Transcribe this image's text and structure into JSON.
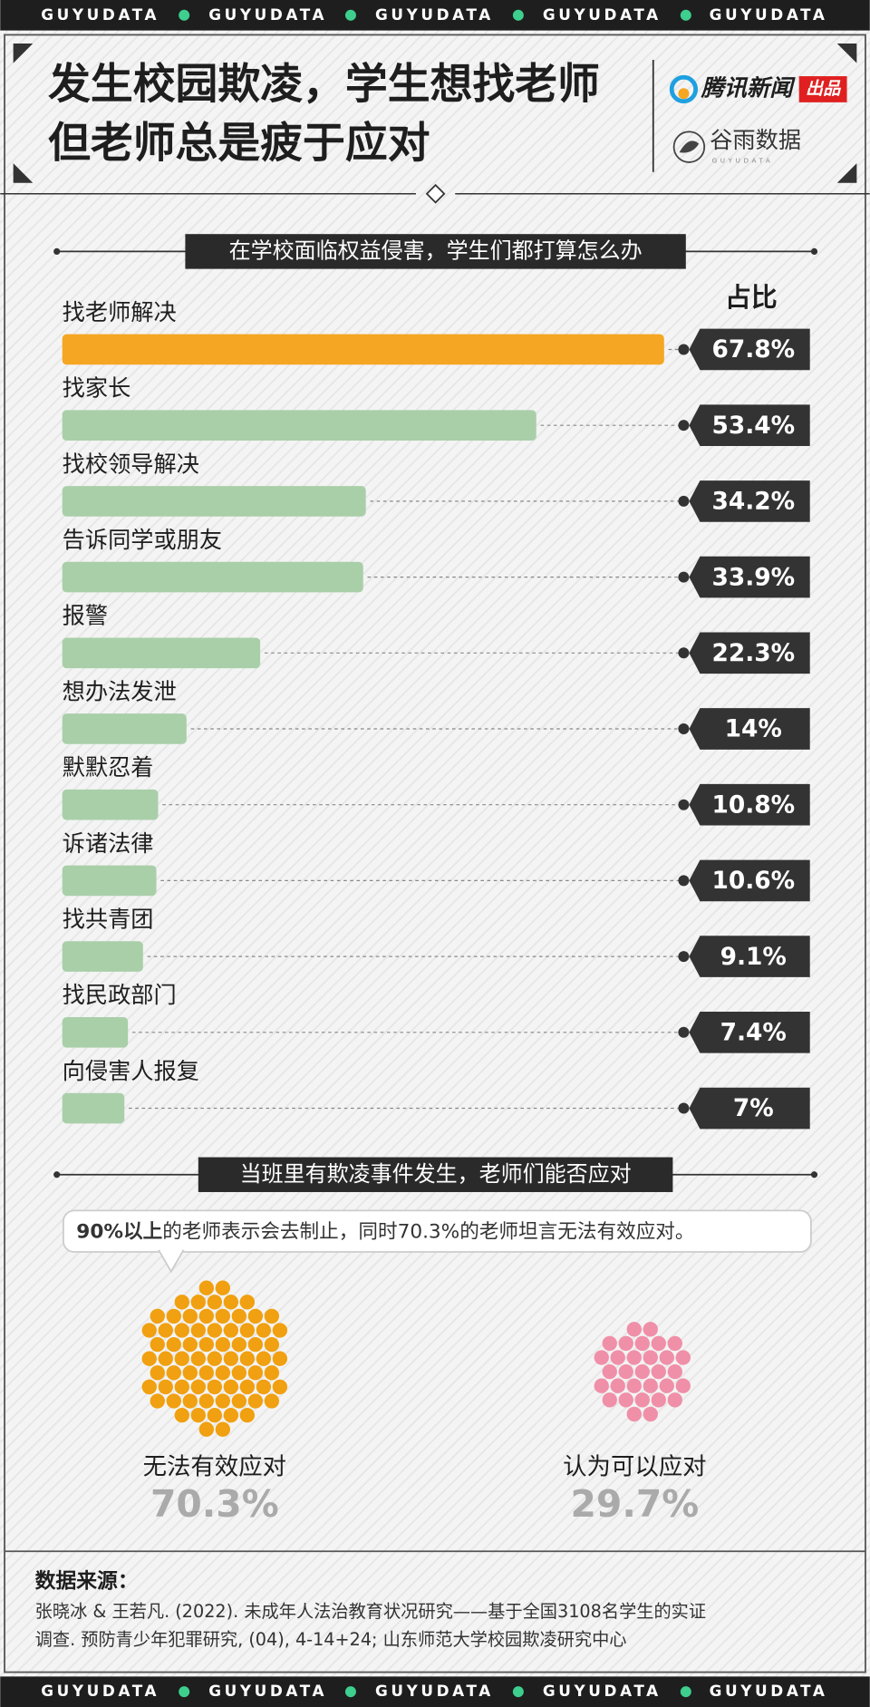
{
  "banner": "GUYUDATA",
  "header": {
    "title_lines": [
      "发生校园欺凌，学生想找老师",
      "但老师总是疲于应对"
    ],
    "publisher": "腾讯新闻",
    "publisher_tag": "出品",
    "brand": "谷雨数据",
    "brand_sub": "GUYUDATA"
  },
  "chart_data": [
    {
      "type": "bar",
      "orientation": "horizontal",
      "title": "在学校面临权益侵害，学生们都打算怎么办",
      "value_header": "占比",
      "categories": [
        "找老师解决",
        "找家长",
        "找校领导解决",
        "告诉同学或朋友",
        "报警",
        "想办法发泄",
        "默默忍着",
        "诉诸法律",
        "找共青团",
        "找民政部门",
        "向侵害人报复"
      ],
      "values": [
        67.8,
        53.4,
        34.2,
        33.9,
        22.3,
        14,
        10.8,
        10.6,
        9.1,
        7.4,
        7
      ],
      "value_labels": [
        "67.8%",
        "53.4%",
        "34.2%",
        "33.9%",
        "22.3%",
        "14%",
        "10.8%",
        "10.6%",
        "9.1%",
        "7.4%",
        "7%"
      ],
      "colors": [
        "#f5a623",
        "#a9cfa9",
        "#a9cfa9",
        "#a9cfa9",
        "#a9cfa9",
        "#a9cfa9",
        "#a9cfa9",
        "#a9cfa9",
        "#a9cfa9",
        "#a9cfa9",
        "#a9cfa9"
      ]
    },
    {
      "type": "dots",
      "title": "当班里有欺凌事件发生，老师们能否应对",
      "note_bold": "90%以上",
      "note_text": "的老师表示会去制止，同时70.3%的老师坦言无法有效应对。",
      "categories": [
        "无法有效应对",
        "认为可以应对"
      ],
      "values": [
        70.3,
        29.7
      ],
      "value_labels": [
        "70.3%",
        "29.7%"
      ],
      "colors": [
        "#f0a010",
        "#f08fa8"
      ]
    }
  ],
  "source": {
    "label": "数据来源：",
    "lines": [
      "张晓冰 & 王若凡. (2022). 未成年人法治教育状况研究——基于全国3108名学生的实证",
      "调查. 预防青少年犯罪研究, (04), 4-14+24; 山东师范大学校园欺凌研究中心"
    ]
  }
}
